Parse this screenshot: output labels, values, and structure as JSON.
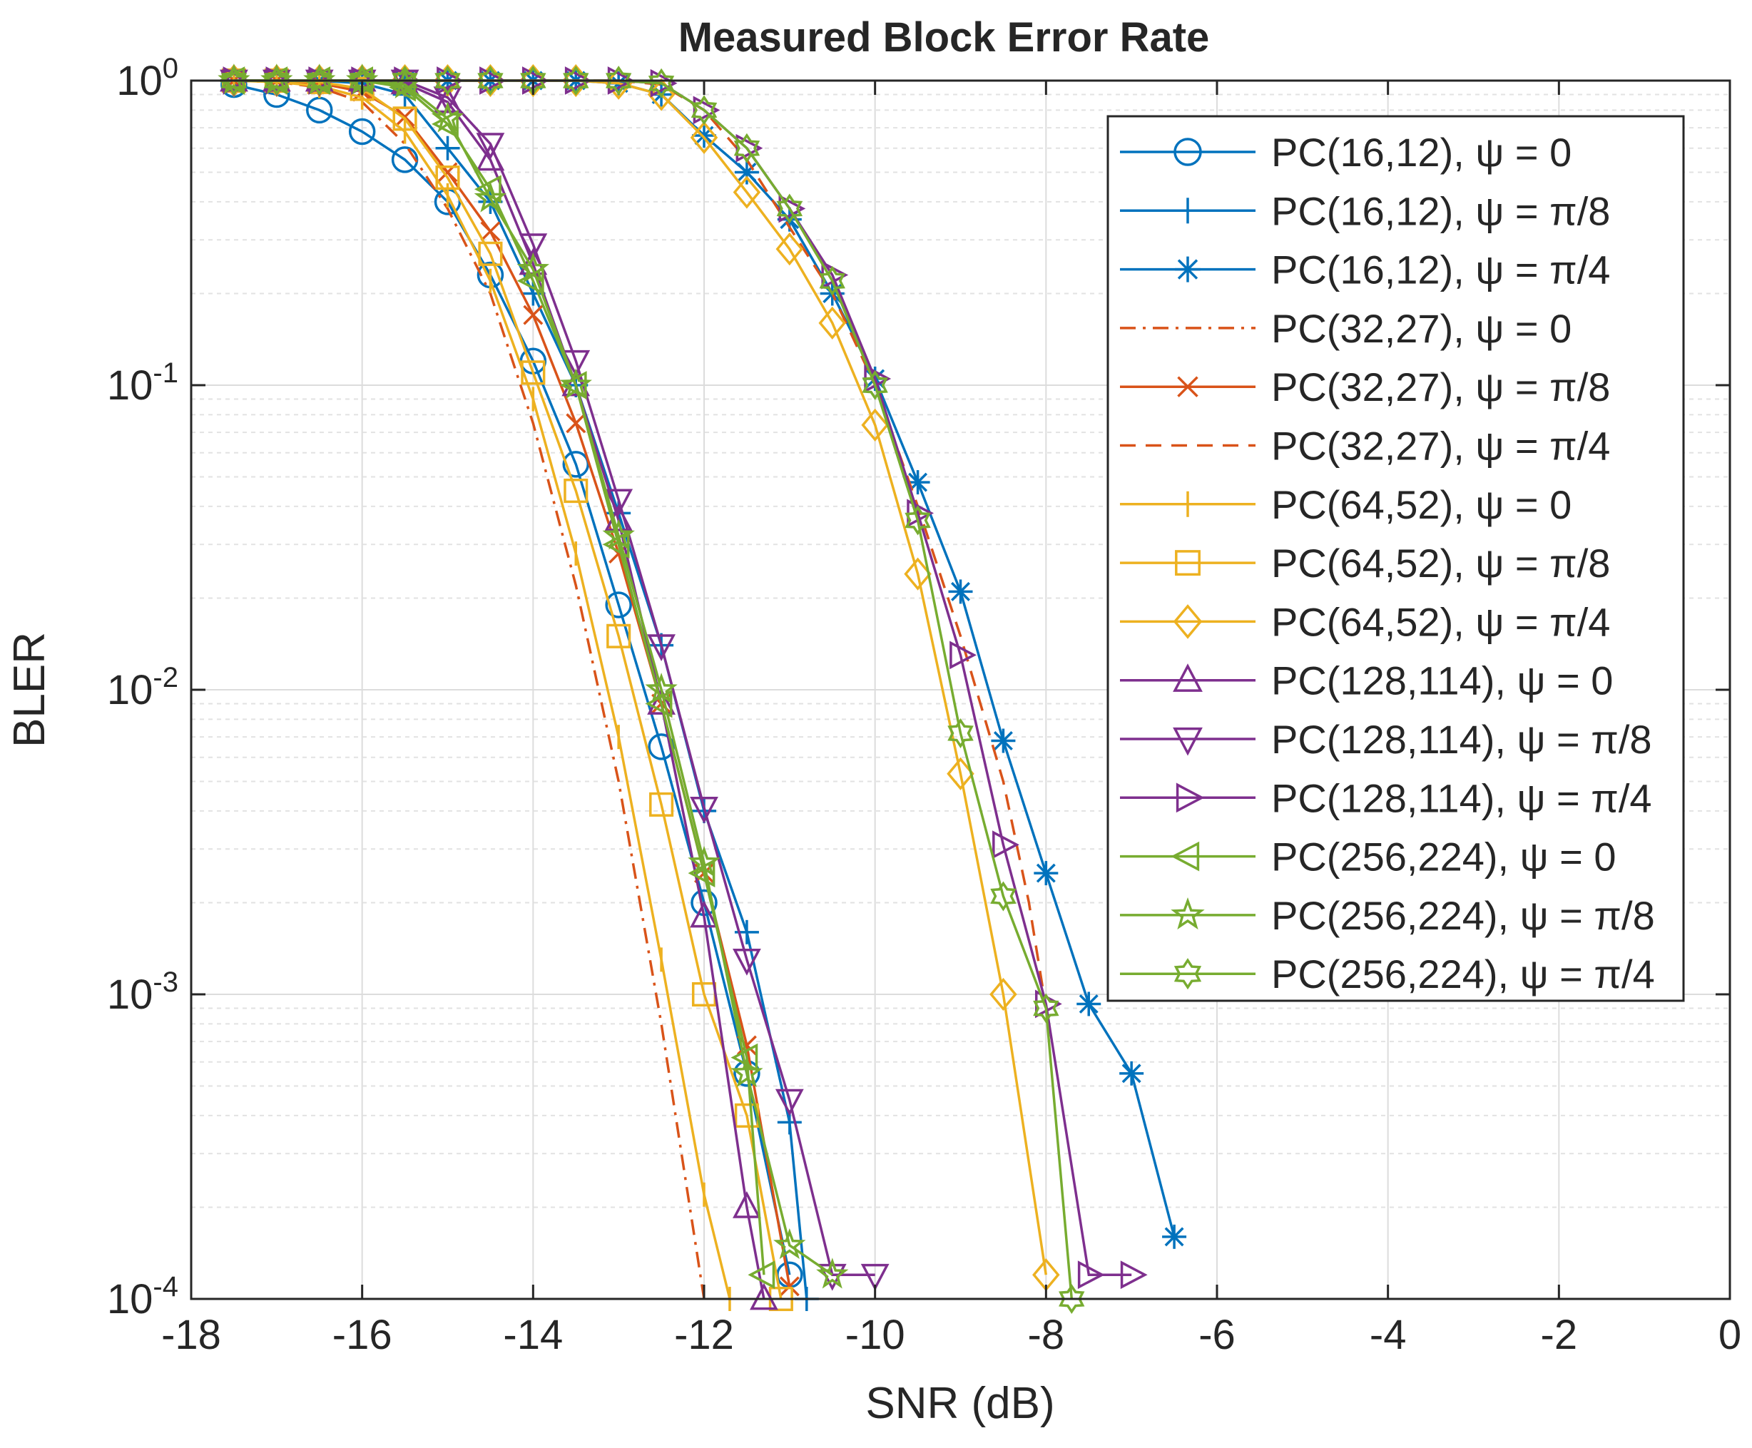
{
  "chart_data": {
    "type": "line",
    "title": "Measured Block Error Rate",
    "xlabel": "SNR (dB)",
    "ylabel": "BLER",
    "xlim": [
      -18,
      0
    ],
    "ylim": [
      0.0001,
      1
    ],
    "yscale": "log",
    "grid": true,
    "legend_position": "top-right",
    "x_ticks": [
      -18,
      -16,
      -14,
      -12,
      -10,
      -8,
      -6,
      -4,
      -2,
      0
    ],
    "x_tick_labels": [
      "-18",
      "-16",
      "-14",
      "-12",
      "-10",
      "-8",
      "-6",
      "-4",
      "-2",
      "0"
    ],
    "y_ticks": [
      {
        "value": 1,
        "base": "10",
        "exp": "0"
      },
      {
        "value": 0.1,
        "base": "10",
        "exp": "-1"
      },
      {
        "value": 0.01,
        "base": "10",
        "exp": "-2"
      },
      {
        "value": 0.001,
        "base": "10",
        "exp": "-3"
      },
      {
        "value": 0.0001,
        "base": "10",
        "exp": "-4"
      }
    ],
    "series": [
      {
        "name": "PC(16,12), ψ = 0",
        "color": "#0072BD",
        "dash": "solid",
        "marker": "circle",
        "x": [
          -17.5,
          -17,
          -16.5,
          -16,
          -15.5,
          -15,
          -14.5,
          -14,
          -13.5,
          -13,
          -12.5,
          -12,
          -11.5,
          -11
        ],
        "y": [
          0.97,
          0.9,
          0.8,
          0.68,
          0.55,
          0.4,
          0.23,
          0.12,
          0.055,
          0.019,
          0.0065,
          0.002,
          0.00055,
          0.00012
        ]
      },
      {
        "name": "PC(16,12), ψ = π/8",
        "color": "#0072BD",
        "dash": "solid",
        "marker": "plus",
        "x": [
          -17.5,
          -17,
          -16.5,
          -16,
          -15.5,
          -15,
          -14.5,
          -14,
          -13.5,
          -13,
          -12.5,
          -12,
          -11.5,
          -11,
          -10.8
        ],
        "y": [
          1,
          1,
          1,
          0.98,
          0.9,
          0.6,
          0.4,
          0.2,
          0.1,
          0.038,
          0.014,
          0.004,
          0.0016,
          0.00038,
          0.0001
        ]
      },
      {
        "name": "PC(16,12), ψ = π/4",
        "color": "#0072BD",
        "dash": "solid",
        "marker": "asterisk",
        "x": [
          -17.5,
          -17,
          -16.5,
          -16,
          -15.5,
          -15,
          -14.5,
          -14,
          -13.5,
          -13,
          -12.5,
          -12,
          -11.5,
          -11,
          -10.5,
          -10,
          -9.5,
          -9,
          -8.5,
          -8,
          -7.5,
          -7,
          -6.5
        ],
        "y": [
          1,
          1,
          1,
          1,
          1,
          1,
          1,
          1,
          1,
          0.98,
          0.9,
          0.66,
          0.5,
          0.35,
          0.2,
          0.105,
          0.048,
          0.021,
          0.0068,
          0.0025,
          0.00093,
          0.00055,
          0.00016
        ]
      },
      {
        "name": "PC(32,27), ψ = 0",
        "color": "#D95319",
        "dash": "dashdot",
        "marker": "none",
        "x": [
          -17.5,
          -17,
          -16.5,
          -16,
          -15.5,
          -15,
          -14.5,
          -14,
          -13.5,
          -13,
          -12.5,
          -12
        ],
        "y": [
          1,
          0.99,
          0.95,
          0.85,
          0.62,
          0.38,
          0.2,
          0.075,
          0.022,
          0.005,
          0.0008,
          0.0001
        ]
      },
      {
        "name": "PC(32,27), ψ = π/8",
        "color": "#D95319",
        "dash": "solid",
        "marker": "x",
        "x": [
          -17.5,
          -17,
          -16.5,
          -16,
          -15.5,
          -15,
          -14.5,
          -14,
          -13.5,
          -13,
          -12.5,
          -12,
          -11.5,
          -11
        ],
        "y": [
          1,
          1,
          0.98,
          0.92,
          0.76,
          0.5,
          0.32,
          0.17,
          0.075,
          0.028,
          0.009,
          0.0025,
          0.00068,
          0.00011
        ]
      },
      {
        "name": "PC(32,27), ψ = π/4",
        "color": "#D95319",
        "dash": "dashed",
        "marker": "none",
        "x": [
          -17.5,
          -17,
          -16.5,
          -16,
          -15.5,
          -15,
          -14.5,
          -14,
          -13.5,
          -13,
          -12.5,
          -12,
          -11.5,
          -11,
          -10.5,
          -10,
          -9.5,
          -9,
          -8.5,
          -8.2,
          -8
        ],
        "y": [
          1,
          1,
          1,
          1,
          1,
          1,
          1,
          1,
          1,
          1,
          0.97,
          0.8,
          0.55,
          0.33,
          0.2,
          0.1,
          0.04,
          0.015,
          0.005,
          0.002,
          0.0009
        ]
      },
      {
        "name": "PC(64,52), ψ = 0",
        "color": "#EDB120",
        "dash": "solid",
        "marker": "vline",
        "x": [
          -17.5,
          -17,
          -16.5,
          -16,
          -15.5,
          -15,
          -14.5,
          -14,
          -13.5,
          -13,
          -12.5,
          -12,
          -11.7
        ],
        "y": [
          1,
          0.99,
          0.96,
          0.88,
          0.68,
          0.42,
          0.22,
          0.09,
          0.028,
          0.007,
          0.0013,
          0.00022,
          0.0001
        ]
      },
      {
        "name": "PC(64,52), ψ = π/8",
        "color": "#EDB120",
        "dash": "solid",
        "marker": "square",
        "x": [
          -17.5,
          -17,
          -16.5,
          -16,
          -15.5,
          -15,
          -14.5,
          -14,
          -13.5,
          -13,
          -12.5,
          -12,
          -11.5,
          -11.1
        ],
        "y": [
          1,
          1,
          0.99,
          0.94,
          0.75,
          0.48,
          0.27,
          0.11,
          0.045,
          0.015,
          0.0042,
          0.001,
          0.0004,
          0.0001
        ]
      },
      {
        "name": "PC(64,52), ψ = π/4",
        "color": "#EDB120",
        "dash": "solid",
        "marker": "diamond",
        "x": [
          -17.5,
          -17,
          -16.5,
          -16,
          -15.5,
          -15,
          -14.5,
          -14,
          -13.5,
          -13,
          -12.5,
          -12,
          -11.5,
          -11,
          -10.5,
          -10,
          -9.5,
          -9,
          -8.5,
          -8
        ],
        "y": [
          1,
          1,
          1,
          1,
          1,
          1,
          1,
          1,
          1,
          0.98,
          0.9,
          0.65,
          0.43,
          0.28,
          0.16,
          0.074,
          0.024,
          0.0053,
          0.001,
          0.00012
        ]
      },
      {
        "name": "PC(128,114), ψ = 0",
        "color": "#7E2F8E",
        "dash": "solid",
        "marker": "triangle-up",
        "x": [
          -17.5,
          -17,
          -16.5,
          -16,
          -15.5,
          -15,
          -14.5,
          -14,
          -13.5,
          -13,
          -12.5,
          -12,
          -11.5,
          -11.3
        ],
        "y": [
          1,
          1,
          1,
          1,
          0.98,
          0.85,
          0.55,
          0.25,
          0.1,
          0.036,
          0.009,
          0.0018,
          0.0002,
          0.0001
        ]
      },
      {
        "name": "PC(128,114), ψ = π/8",
        "color": "#7E2F8E",
        "dash": "solid",
        "marker": "triangle-down",
        "x": [
          -17.5,
          -17,
          -16.5,
          -16,
          -15.5,
          -15,
          -14.5,
          -14,
          -13.5,
          -13,
          -12.5,
          -12,
          -11.5,
          -11,
          -10.5,
          -10
        ],
        "y": [
          1,
          1,
          1,
          1,
          1,
          0.88,
          0.62,
          0.29,
          0.12,
          0.042,
          0.014,
          0.0041,
          0.0013,
          0.00045,
          0.00012,
          0.00012
        ]
      },
      {
        "name": "PC(128,114), ψ = π/4",
        "color": "#7E2F8E",
        "dash": "solid",
        "marker": "triangle-right",
        "x": [
          -17.5,
          -17,
          -16.5,
          -16,
          -15.5,
          -15,
          -14.5,
          -14,
          -13.5,
          -13,
          -12.5,
          -12,
          -11.5,
          -11,
          -10.5,
          -10,
          -9.5,
          -9,
          -8.5,
          -8,
          -7.5,
          -7
        ],
        "y": [
          1,
          1,
          1,
          1,
          1,
          1,
          1,
          1,
          1,
          1,
          0.98,
          0.8,
          0.6,
          0.38,
          0.23,
          0.105,
          0.038,
          0.013,
          0.0031,
          0.00093,
          0.00012,
          0.00012
        ]
      },
      {
        "name": "PC(256,224), ψ = 0",
        "color": "#77AC30",
        "dash": "solid",
        "marker": "triangle-left",
        "x": [
          -17.5,
          -17,
          -16.5,
          -16,
          -15.5,
          -15,
          -14.5,
          -14,
          -13.5,
          -13,
          -12.5,
          -12,
          -11.5,
          -11.3
        ],
        "y": [
          1,
          1,
          1,
          1,
          0.95,
          0.72,
          0.44,
          0.22,
          0.1,
          0.03,
          0.009,
          0.0025,
          0.00062,
          0.00012
        ]
      },
      {
        "name": "PC(256,224), ψ = π/8",
        "color": "#77AC30",
        "dash": "solid",
        "marker": "star",
        "x": [
          -17.5,
          -17,
          -16.5,
          -16,
          -15.5,
          -15,
          -14.5,
          -14,
          -13.5,
          -13,
          -12.5,
          -12,
          -11.5,
          -11,
          -10.5
        ],
        "y": [
          1,
          1,
          1,
          1,
          0.97,
          0.75,
          0.41,
          0.24,
          0.1,
          0.032,
          0.01,
          0.0027,
          0.00055,
          0.00015,
          0.00012
        ]
      },
      {
        "name": "PC(256,224), ψ = π/4",
        "color": "#77AC30",
        "dash": "solid",
        "marker": "hexagram",
        "x": [
          -17.5,
          -17,
          -16.5,
          -16,
          -15.5,
          -15,
          -14.5,
          -14,
          -13.5,
          -13,
          -12.5,
          -12,
          -11.5,
          -11,
          -10.5,
          -10,
          -9.5,
          -9,
          -8.5,
          -8,
          -7.7
        ],
        "y": [
          1,
          1,
          1,
          1,
          1,
          1,
          1,
          1,
          1,
          1,
          0.98,
          0.8,
          0.6,
          0.38,
          0.22,
          0.1,
          0.036,
          0.0072,
          0.0021,
          0.0009,
          0.0001
        ]
      }
    ]
  }
}
